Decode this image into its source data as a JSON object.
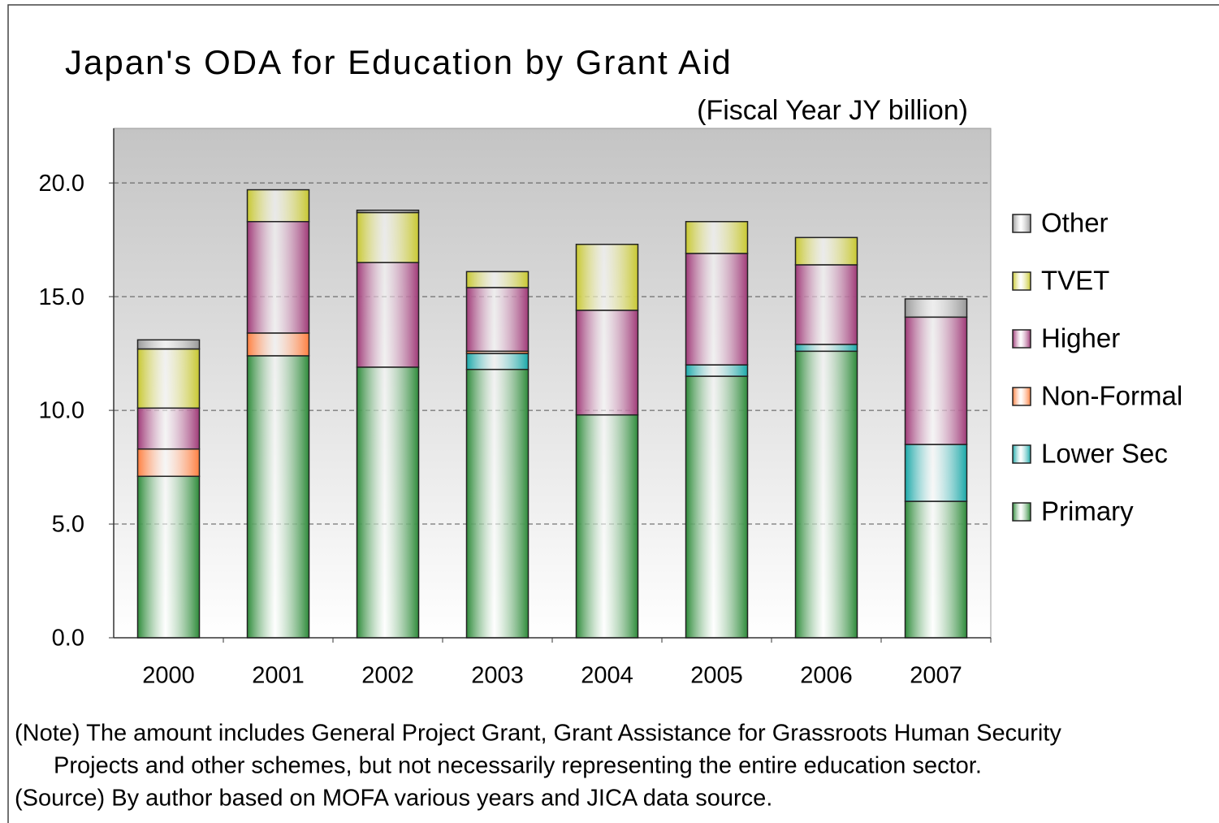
{
  "chart_data": {
    "type": "stacked_bar",
    "title": "Japan's ODA for Education by Grant Aid",
    "subtitle": "(Fiscal Year JY billion)",
    "categories": [
      "2000",
      "2001",
      "2002",
      "2003",
      "2004",
      "2005",
      "2006",
      "2007"
    ],
    "series": [
      {
        "name": "Primary",
        "color": "#2e8b3a",
        "values": [
          7.1,
          12.4,
          11.9,
          11.8,
          9.8,
          11.5,
          12.6,
          6.0
        ]
      },
      {
        "name": "Lower Sec",
        "color": "#1aa8a8",
        "values": [
          0,
          0,
          0,
          0.7,
          0,
          0.5,
          0.3,
          2.5
        ]
      },
      {
        "name": "Non-Formal",
        "color": "#ff7f40",
        "values": [
          1.2,
          1.0,
          0,
          0.1,
          0,
          0,
          0,
          0
        ]
      },
      {
        "name": "Higher",
        "color": "#a03a78",
        "values": [
          1.8,
          4.9,
          4.6,
          2.8,
          4.6,
          4.9,
          3.5,
          5.6
        ]
      },
      {
        "name": "TVET",
        "color": "#c8c830",
        "values": [
          2.6,
          1.4,
          2.2,
          0.7,
          2.9,
          1.4,
          1.2,
          0
        ]
      },
      {
        "name": "Other",
        "color": "#999999",
        "values": [
          0.4,
          0,
          0.1,
          0,
          0,
          0,
          0,
          0.8
        ]
      }
    ],
    "ylim": [
      0,
      22.4
    ],
    "yticks": [
      {
        "value": 0,
        "label": "0.0"
      },
      {
        "value": 5,
        "label": "5.0"
      },
      {
        "value": 10,
        "label": "10.0"
      },
      {
        "value": 15,
        "label": "15.0"
      },
      {
        "value": 20,
        "label": "20.0"
      }
    ],
    "grid": true,
    "legend": "right",
    "notes": [
      "(Note) The amount includes  General Project Grant, Grant Assistance for Grassroots Human Security",
      "Projects and other schemes, but not necessarily representing the entire education sector.",
      "(Source) By author based on MOFA various years and JICA data source."
    ]
  }
}
